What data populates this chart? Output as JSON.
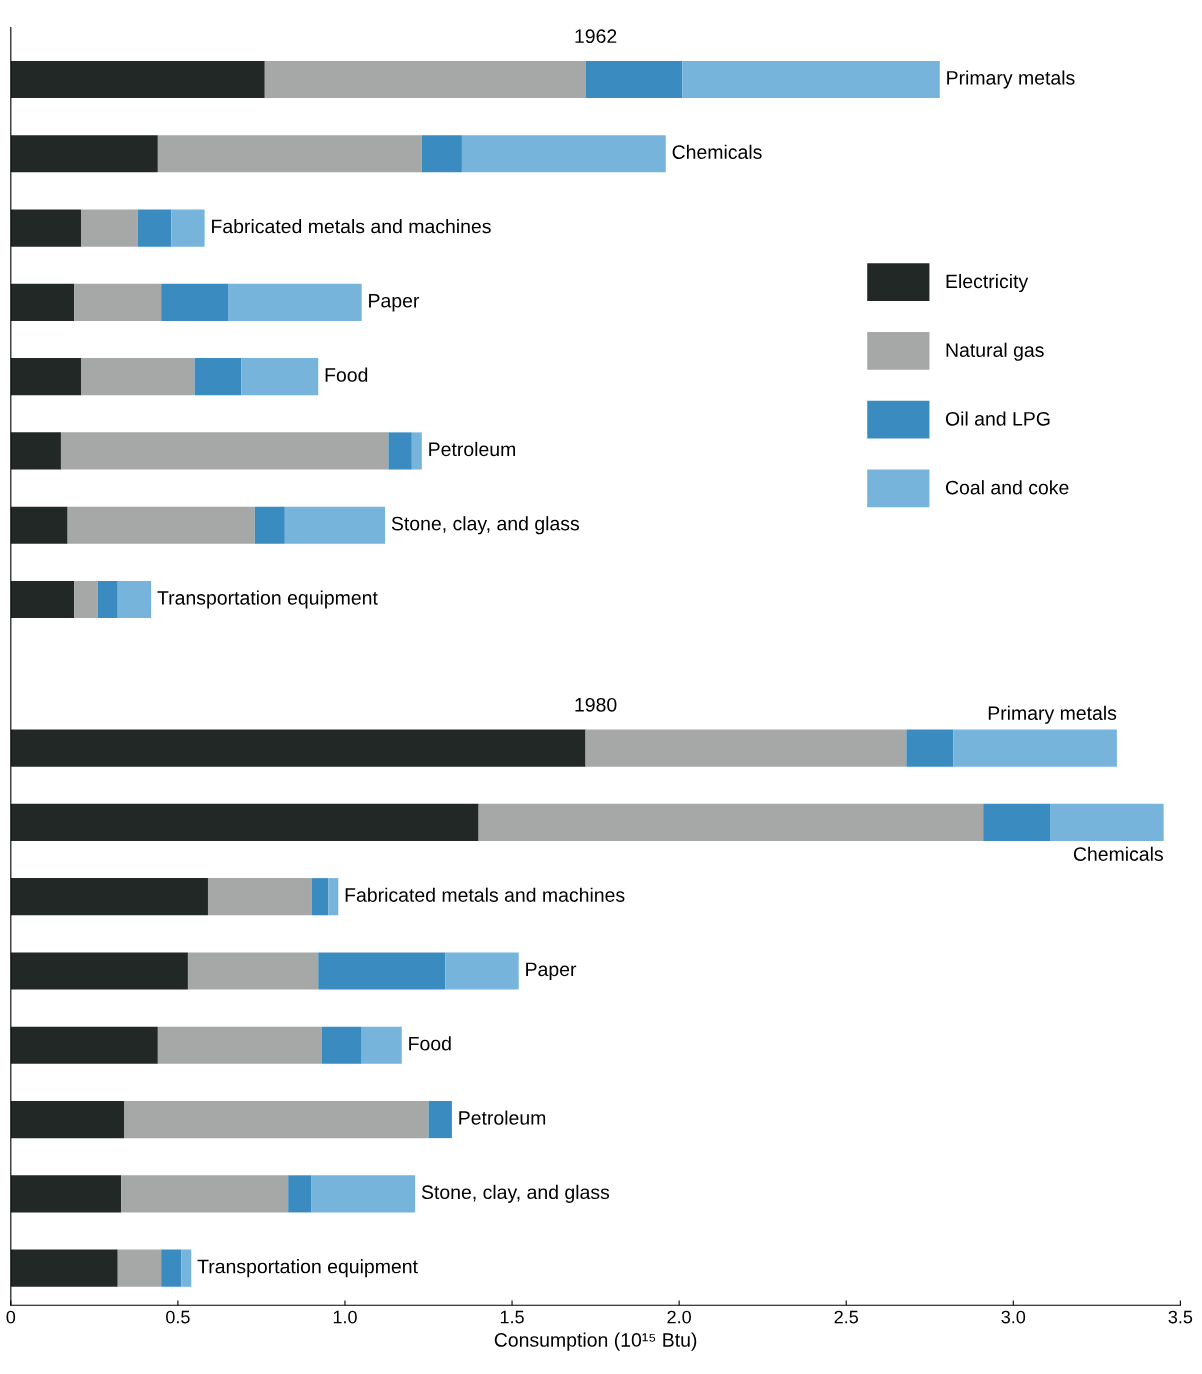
{
  "chart_data": {
    "type": "bar",
    "title": "1962",
    "annotations": [
      "1980"
    ],
    "orientation": "horizontal",
    "stacked": true,
    "legend": "right",
    "grid": false,
    "xlim": [
      0,
      3.5
    ],
    "xticks": [
      0,
      0.5,
      {
        "value": 1,
        "label": "1.0"
      },
      1.5,
      {
        "value": 2,
        "label": "2.0"
      },
      2.5,
      {
        "value": 3,
        "label": "3.0"
      },
      3.5
    ],
    "xlabel": "Consumption (10¹⁵ Btu)",
    "categories": [
      "Primary metals",
      "Chemicals",
      "Fabricated metals and machines",
      "Paper",
      "Food",
      "Petroleum",
      "Stone, clay, and glass",
      "Transportation equipment",
      null,
      "Primary metals",
      "Chemicals",
      "Fabricated metals and machines",
      "Paper",
      "Food",
      "Petroleum",
      "Stone, clay, and glass",
      "Transportation equipment"
    ],
    "series": [
      {
        "name": "Electricity",
        "color": "#222826",
        "values": [
          0.76,
          0.44,
          0.21,
          0.19,
          0.21,
          0.15,
          0.17,
          0.19,
          null,
          1.72,
          1.4,
          0.59,
          0.53,
          0.44,
          0.34,
          0.33,
          0.32
        ]
      },
      {
        "name": "Natural gas",
        "color": "#a6a8a8",
        "values": [
          0.96,
          0.79,
          0.17,
          0.26,
          0.34,
          0.98,
          0.56,
          0.07,
          null,
          0.96,
          1.51,
          0.31,
          0.39,
          0.49,
          0.91,
          0.5,
          0.13
        ]
      },
      {
        "name": "Oil and LPG",
        "color": "#3a8cc0",
        "values": [
          0.29,
          0.12,
          0.1,
          0.2,
          0.14,
          0.07,
          0.09,
          0.06,
          null,
          0.14,
          0.2,
          0.05,
          0.38,
          0.12,
          0.07,
          0.07,
          0.06
        ]
      },
      {
        "name": "Coal and coke",
        "color": "#76b4dc",
        "values": [
          0.77,
          0.61,
          0.1,
          0.4,
          0.23,
          0.03,
          0.3,
          0.1,
          null,
          0.49,
          0.34,
          0.03,
          0.22,
          0.12,
          0,
          0.31,
          0.03
        ]
      }
    ]
  }
}
